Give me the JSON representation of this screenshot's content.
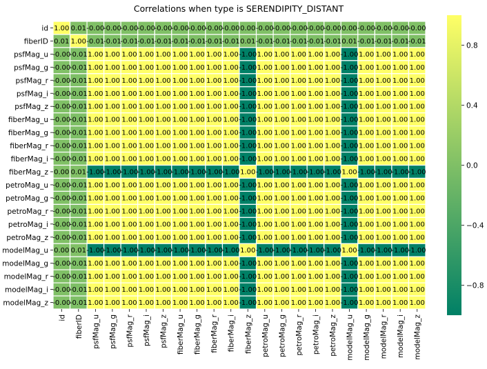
{
  "chart_data": {
    "type": "heatmap",
    "title": "Correlations when type is SERENDIPITY_DISTANT",
    "labels": [
      "id",
      "fiberID",
      "psfMag_u",
      "psfMag_g",
      "psfMag_r",
      "psfMag_i",
      "psfMag_z",
      "fiberMag_u",
      "fiberMag_g",
      "fiberMag_r",
      "fiberMag_i",
      "fiberMag_z",
      "petroMag_u",
      "petroMag_g",
      "petroMag_r",
      "petroMag_i",
      "petroMag_z",
      "modelMag_u",
      "modelMag_g",
      "modelMag_r",
      "modelMag_i",
      "modelMag_z"
    ],
    "cell_text": [
      [
        "1.00",
        "0.01",
        "-0.00",
        "-0.00",
        "-0.00",
        "-0.00",
        "-0.00",
        "-0.00",
        "-0.00",
        "-0.00",
        "-0.00",
        "0.00",
        "-0.00",
        "-0.00",
        "-0.00",
        "-0.00",
        "-0.00",
        "0.00",
        "-0.00",
        "-0.00",
        "-0.00",
        "-0.00"
      ],
      [
        "0.01",
        "1.00",
        "-0.01",
        "-0.01",
        "-0.01",
        "-0.01",
        "-0.01",
        "-0.01",
        "-0.01",
        "-0.01",
        "-0.01",
        "0.01",
        "-0.01",
        "-0.01",
        "-0.01",
        "-0.01",
        "-0.01",
        "0.01",
        "-0.01",
        "-0.01",
        "-0.01",
        "-0.01"
      ],
      [
        "-0.00",
        "-0.01",
        "1.00",
        "1.00",
        "1.00",
        "1.00",
        "1.00",
        "1.00",
        "1.00",
        "1.00",
        "1.00",
        "-1.00",
        "1.00",
        "1.00",
        "1.00",
        "1.00",
        "1.00",
        "-1.00",
        "1.00",
        "1.00",
        "1.00",
        "1.00"
      ],
      [
        "-0.00",
        "-0.01",
        "1.00",
        "1.00",
        "1.00",
        "1.00",
        "1.00",
        "1.00",
        "1.00",
        "1.00",
        "1.00",
        "-1.00",
        "1.00",
        "1.00",
        "1.00",
        "1.00",
        "1.00",
        "-1.00",
        "1.00",
        "1.00",
        "1.00",
        "1.00"
      ],
      [
        "-0.00",
        "-0.01",
        "1.00",
        "1.00",
        "1.00",
        "1.00",
        "1.00",
        "1.00",
        "1.00",
        "1.00",
        "1.00",
        "-1.00",
        "1.00",
        "1.00",
        "1.00",
        "1.00",
        "1.00",
        "-1.00",
        "1.00",
        "1.00",
        "1.00",
        "1.00"
      ],
      [
        "-0.00",
        "-0.01",
        "1.00",
        "1.00",
        "1.00",
        "1.00",
        "1.00",
        "1.00",
        "1.00",
        "1.00",
        "1.00",
        "-1.00",
        "1.00",
        "1.00",
        "1.00",
        "1.00",
        "1.00",
        "-1.00",
        "1.00",
        "1.00",
        "1.00",
        "1.00"
      ],
      [
        "-0.00",
        "-0.01",
        "1.00",
        "1.00",
        "1.00",
        "1.00",
        "1.00",
        "1.00",
        "1.00",
        "1.00",
        "1.00",
        "-1.00",
        "1.00",
        "1.00",
        "1.00",
        "1.00",
        "1.00",
        "-1.00",
        "1.00",
        "1.00",
        "1.00",
        "1.00"
      ],
      [
        "-0.00",
        "-0.01",
        "1.00",
        "1.00",
        "1.00",
        "1.00",
        "1.00",
        "1.00",
        "1.00",
        "1.00",
        "1.00",
        "-1.00",
        "1.00",
        "1.00",
        "1.00",
        "1.00",
        "1.00",
        "-1.00",
        "1.00",
        "1.00",
        "1.00",
        "1.00"
      ],
      [
        "-0.00",
        "-0.01",
        "1.00",
        "1.00",
        "1.00",
        "1.00",
        "1.00",
        "1.00",
        "1.00",
        "1.00",
        "1.00",
        "-1.00",
        "1.00",
        "1.00",
        "1.00",
        "1.00",
        "1.00",
        "-1.00",
        "1.00",
        "1.00",
        "1.00",
        "1.00"
      ],
      [
        "-0.00",
        "-0.01",
        "1.00",
        "1.00",
        "1.00",
        "1.00",
        "1.00",
        "1.00",
        "1.00",
        "1.00",
        "1.00",
        "-1.00",
        "1.00",
        "1.00",
        "1.00",
        "1.00",
        "1.00",
        "-1.00",
        "1.00",
        "1.00",
        "1.00",
        "1.00"
      ],
      [
        "-0.00",
        "-0.01",
        "1.00",
        "1.00",
        "1.00",
        "1.00",
        "1.00",
        "1.00",
        "1.00",
        "1.00",
        "1.00",
        "-1.00",
        "1.00",
        "1.00",
        "1.00",
        "1.00",
        "1.00",
        "-1.00",
        "1.00",
        "1.00",
        "1.00",
        "1.00"
      ],
      [
        "0.00",
        "0.01",
        "-1.00",
        "-1.00",
        "-1.00",
        "-1.00",
        "-1.00",
        "-1.00",
        "-1.00",
        "-1.00",
        "-1.00",
        "1.00",
        "-1.00",
        "-1.00",
        "-1.00",
        "-1.00",
        "-1.00",
        "1.00",
        "-1.00",
        "-1.00",
        "-1.00",
        "-1.00"
      ],
      [
        "-0.00",
        "-0.01",
        "1.00",
        "1.00",
        "1.00",
        "1.00",
        "1.00",
        "1.00",
        "1.00",
        "1.00",
        "1.00",
        "-1.00",
        "1.00",
        "1.00",
        "1.00",
        "1.00",
        "1.00",
        "-1.00",
        "1.00",
        "1.00",
        "1.00",
        "1.00"
      ],
      [
        "-0.00",
        "-0.01",
        "1.00",
        "1.00",
        "1.00",
        "1.00",
        "1.00",
        "1.00",
        "1.00",
        "1.00",
        "1.00",
        "-1.00",
        "1.00",
        "1.00",
        "1.00",
        "1.00",
        "1.00",
        "-1.00",
        "1.00",
        "1.00",
        "1.00",
        "1.00"
      ],
      [
        "-0.00",
        "-0.01",
        "1.00",
        "1.00",
        "1.00",
        "1.00",
        "1.00",
        "1.00",
        "1.00",
        "1.00",
        "1.00",
        "-1.00",
        "1.00",
        "1.00",
        "1.00",
        "1.00",
        "1.00",
        "-1.00",
        "1.00",
        "1.00",
        "1.00",
        "1.00"
      ],
      [
        "-0.00",
        "-0.01",
        "1.00",
        "1.00",
        "1.00",
        "1.00",
        "1.00",
        "1.00",
        "1.00",
        "1.00",
        "1.00",
        "-1.00",
        "1.00",
        "1.00",
        "1.00",
        "1.00",
        "1.00",
        "-1.00",
        "1.00",
        "1.00",
        "1.00",
        "1.00"
      ],
      [
        "-0.00",
        "-0.01",
        "1.00",
        "1.00",
        "1.00",
        "1.00",
        "1.00",
        "1.00",
        "1.00",
        "1.00",
        "1.00",
        "-1.00",
        "1.00",
        "1.00",
        "1.00",
        "1.00",
        "1.00",
        "-1.00",
        "1.00",
        "1.00",
        "1.00",
        "1.00"
      ],
      [
        "0.00",
        "0.01",
        "-1.00",
        "-1.00",
        "-1.00",
        "-1.00",
        "-1.00",
        "-1.00",
        "-1.00",
        "-1.00",
        "-1.00",
        "1.00",
        "-1.00",
        "-1.00",
        "-1.00",
        "-1.00",
        "-1.00",
        "1.00",
        "-1.00",
        "-1.00",
        "-1.00",
        "-1.00"
      ],
      [
        "-0.00",
        "-0.01",
        "1.00",
        "1.00",
        "1.00",
        "1.00",
        "1.00",
        "1.00",
        "1.00",
        "1.00",
        "1.00",
        "-1.00",
        "1.00",
        "1.00",
        "1.00",
        "1.00",
        "1.00",
        "-1.00",
        "1.00",
        "1.00",
        "1.00",
        "1.00"
      ],
      [
        "-0.00",
        "-0.01",
        "1.00",
        "1.00",
        "1.00",
        "1.00",
        "1.00",
        "1.00",
        "1.00",
        "1.00",
        "1.00",
        "-1.00",
        "1.00",
        "1.00",
        "1.00",
        "1.00",
        "1.00",
        "-1.00",
        "1.00",
        "1.00",
        "1.00",
        "1.00"
      ],
      [
        "-0.00",
        "-0.01",
        "1.00",
        "1.00",
        "1.00",
        "1.00",
        "1.00",
        "1.00",
        "1.00",
        "1.00",
        "1.00",
        "-1.00",
        "1.00",
        "1.00",
        "1.00",
        "1.00",
        "1.00",
        "-1.00",
        "1.00",
        "1.00",
        "1.00",
        "1.00"
      ],
      [
        "-0.00",
        "-0.01",
        "1.00",
        "1.00",
        "1.00",
        "1.00",
        "1.00",
        "1.00",
        "1.00",
        "1.00",
        "1.00",
        "-1.00",
        "1.00",
        "1.00",
        "1.00",
        "1.00",
        "1.00",
        "-1.00",
        "1.00",
        "1.00",
        "1.00",
        "1.00"
      ]
    ],
    "colorbar": {
      "range": [
        -1,
        1
      ],
      "ticks": [
        "0.8",
        "0.4",
        "0.0",
        "−0.4",
        "−0.8"
      ],
      "tick_values": [
        0.8,
        0.4,
        0.0,
        -0.4,
        -0.8
      ]
    },
    "colormap": "summer",
    "colors": {
      "low": "#008066",
      "high": "#ffff66",
      "cell_border": "#ffffff"
    }
  }
}
